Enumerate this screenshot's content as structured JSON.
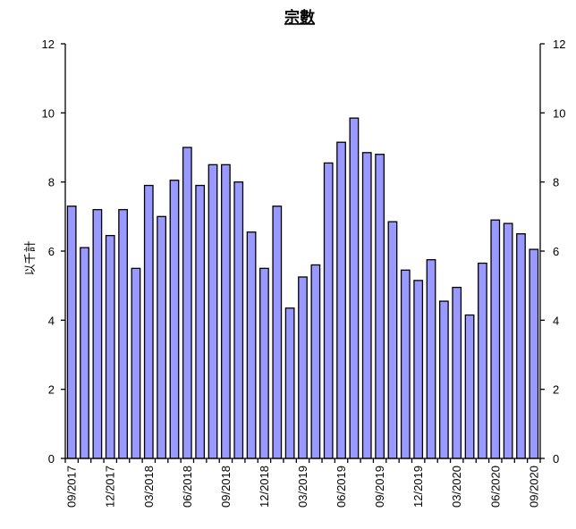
{
  "chart_data": {
    "type": "bar",
    "title": "宗數",
    "xlabel": "",
    "ylabel": "以千計",
    "ylim": [
      0,
      12
    ],
    "yticks": [
      0,
      2,
      4,
      6,
      8,
      10,
      12
    ],
    "y_axis_right_mirror": true,
    "grid": false,
    "legend": "none",
    "categories": [
      "09/2017",
      "10/2017",
      "11/2017",
      "12/2017",
      "01/2018",
      "02/2018",
      "03/2018",
      "04/2018",
      "05/2018",
      "06/2018",
      "07/2018",
      "08/2018",
      "09/2018",
      "10/2018",
      "11/2018",
      "12/2018",
      "01/2019",
      "02/2019",
      "03/2019",
      "04/2019",
      "05/2019",
      "06/2019",
      "07/2019",
      "08/2019",
      "09/2019",
      "10/2019",
      "11/2019",
      "12/2019",
      "01/2020",
      "02/2020",
      "03/2020",
      "04/2020",
      "05/2020",
      "06/2020",
      "07/2020",
      "08/2020",
      "09/2020"
    ],
    "x_tick_labels": [
      "09/2017",
      "12/2017",
      "03/2018",
      "06/2018",
      "09/2018",
      "12/2018",
      "03/2019",
      "06/2019",
      "09/2019",
      "12/2019",
      "03/2020",
      "06/2020",
      "09/2020"
    ],
    "x_tick_label_indices": [
      0,
      3,
      6,
      9,
      12,
      15,
      18,
      21,
      24,
      27,
      30,
      33,
      36
    ],
    "values": [
      7.3,
      6.1,
      7.2,
      6.45,
      7.2,
      5.5,
      7.9,
      7.0,
      8.05,
      9.0,
      7.9,
      8.5,
      8.5,
      8.0,
      6.55,
      5.5,
      7.3,
      4.35,
      5.25,
      5.6,
      8.55,
      9.15,
      9.85,
      8.85,
      8.8,
      6.85,
      5.45,
      5.15,
      5.75,
      4.55,
      4.95,
      4.15,
      5.65,
      6.9,
      6.8,
      6.5,
      6.05
    ],
    "colors": {
      "bar_fill": "#9999ff",
      "bar_stroke": "#000000",
      "axis": "#000000"
    }
  }
}
